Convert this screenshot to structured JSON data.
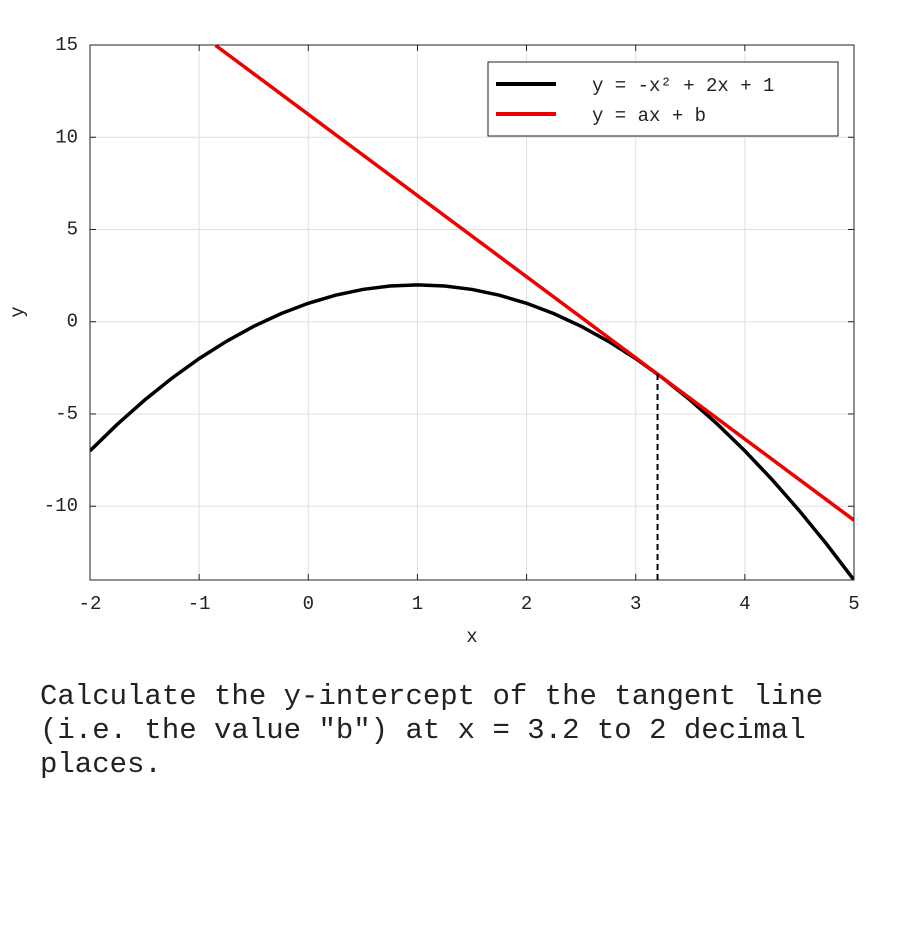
{
  "chart_data": {
    "type": "line",
    "xlabel": "x",
    "ylabel": "y",
    "xlim": [
      -2,
      5
    ],
    "ylim": [
      -14,
      15
    ],
    "xticks": [
      -2,
      -1,
      0,
      1,
      2,
      3,
      4,
      5
    ],
    "yticks": [
      -10,
      -5,
      0,
      5,
      10,
      15
    ],
    "grid": true,
    "legend": "upper right",
    "series": [
      {
        "name": "y = -x² + 2x + 1",
        "color": "#000000",
        "x": [
          -2,
          -1.75,
          -1.5,
          -1.25,
          -1,
          -0.75,
          -0.5,
          -0.25,
          0,
          0.25,
          0.5,
          0.75,
          1,
          1.25,
          1.5,
          1.75,
          2,
          2.25,
          2.5,
          2.75,
          3,
          3.25,
          3.5,
          3.75,
          4,
          4.25,
          4.5,
          4.75,
          5
        ],
        "values": [
          -7,
          -5.5625,
          -4.25,
          -3.0625,
          -2,
          -1.0625,
          -0.25,
          0.4375,
          1,
          1.4375,
          1.75,
          1.9375,
          2,
          1.9375,
          1.75,
          1.4375,
          1,
          0.4375,
          -0.25,
          -1.0625,
          -2,
          -3.0625,
          -4.25,
          -5.5625,
          -7,
          -8.5625,
          -10.25,
          -12.0625,
          -14
        ]
      },
      {
        "name": "y = ax + b",
        "color": "#ee0000",
        "x": [
          -0.85,
          5
        ],
        "values": [
          14.98,
          -10.76
        ]
      }
    ],
    "marker_line": {
      "x": 3.2,
      "y": -2.84
    }
  },
  "question": "Calculate the y-intercept of the tangent line (i.e. the value \"b\") at x = 3.2 to 2 decimal places."
}
